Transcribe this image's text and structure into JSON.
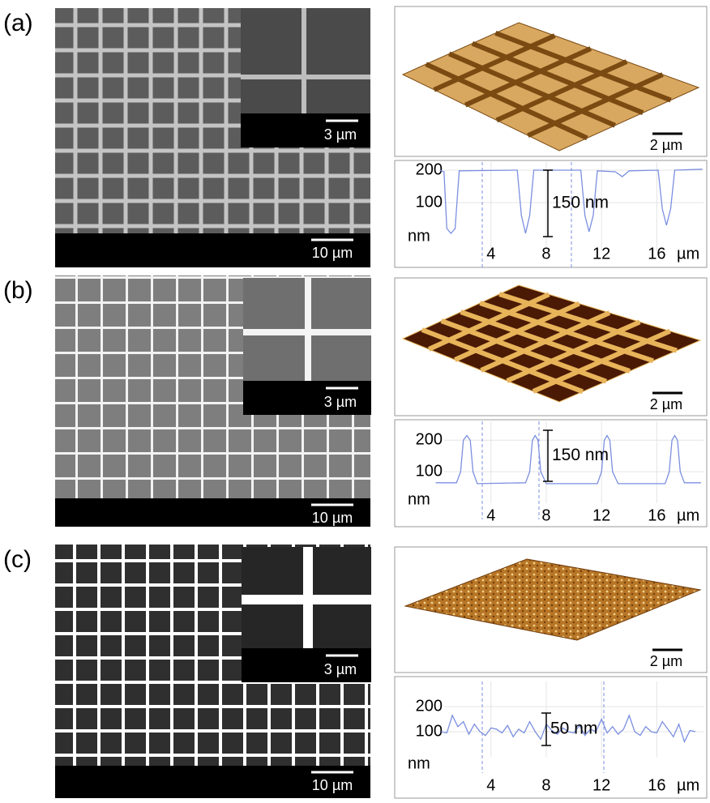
{
  "panels": [
    {
      "label": "(a)",
      "sem_scale": "10 µm",
      "inset_scale": "3 µm",
      "afm_scale": "2 µm",
      "profile": {
        "type": "line",
        "color": "#7b8fe0",
        "x": [
          0.3,
          0.6,
          0.8,
          1.1,
          1.4,
          1.7,
          5.9,
          6.2,
          6.5,
          6.8,
          7.1,
          10.5,
          10.8,
          11.1,
          11.4,
          11.7,
          13,
          13.5,
          14,
          16.1,
          16.4,
          16.7,
          17,
          17.3,
          19.3
        ],
        "values": [
          200,
          195,
          20,
          5,
          20,
          198,
          200,
          60,
          5,
          60,
          200,
          200,
          60,
          10,
          60,
          198,
          195,
          180,
          198,
          200,
          80,
          30,
          80,
          200,
          203
        ],
        "xlim": [
          -2.5,
          19.5
        ],
        "ylim": [
          -50,
          225
        ],
        "xticks": [
          4,
          8,
          12,
          16
        ],
        "yticks": [
          200,
          100
        ],
        "x_label": "µm",
        "y_label": "nm",
        "annotation": "150 nm"
      }
    },
    {
      "label": "(b)",
      "sem_scale": "10 µm",
      "inset_scale": "3 µm",
      "afm_scale": "2 µm",
      "profile": {
        "type": "line",
        "color": "#7b8fe0",
        "x": [
          0,
          1.5,
          1.8,
          2.0,
          2.25,
          2.5,
          2.7,
          3,
          6.5,
          6.8,
          7.0,
          7.2,
          7.4,
          7.6,
          8,
          11.7,
          12,
          12.2,
          12.4,
          12.6,
          12.8,
          13.2,
          16.6,
          16.9,
          17.1,
          17.3,
          17.5,
          17.7,
          18,
          19.2
        ],
        "values": [
          65,
          65,
          100,
          200,
          215,
          200,
          100,
          62,
          65,
          100,
          200,
          215,
          200,
          100,
          62,
          62,
          100,
          200,
          215,
          200,
          100,
          62,
          62,
          100,
          200,
          215,
          200,
          100,
          65,
          65
        ],
        "xlim": [
          -2.5,
          19.5
        ],
        "ylim": [
          0,
          260
        ],
        "xticks": [
          4,
          8,
          12,
          16
        ],
        "yticks": [
          200,
          100
        ],
        "x_label": "µm",
        "y_label": "nm",
        "annotation": "150 nm"
      }
    },
    {
      "label": "(c)",
      "sem_scale": "10 µm",
      "inset_scale": "3 µm",
      "afm_scale": "2 µm",
      "profile": {
        "type": "line",
        "color": "#7b8fe0",
        "x": [
          0.4,
          0.8,
          1.2,
          1.6,
          2,
          2.4,
          2.8,
          3.2,
          3.6,
          4,
          4.4,
          4.8,
          5.2,
          5.6,
          6,
          6.4,
          6.8,
          7.2,
          7.6,
          8,
          8.4,
          8.8,
          9.2,
          9.6,
          10,
          10.4,
          10.8,
          11.2,
          11.6,
          12,
          12.4,
          12.8,
          13.2,
          13.6,
          14,
          14.4,
          14.8,
          15.2,
          15.6,
          16,
          16.4,
          16.8,
          17.2,
          17.6,
          18,
          18.4,
          18.8
        ],
        "values": [
          100,
          95,
          165,
          120,
          140,
          90,
          130,
          100,
          85,
          115,
          110,
          95,
          125,
          80,
          110,
          95,
          140,
          100,
          70,
          130,
          105,
          90,
          115,
          100,
          95,
          125,
          85,
          110,
          100,
          150,
          95,
          120,
          90,
          110,
          165,
          100,
          85,
          120,
          100,
          95,
          140,
          110,
          80,
          130,
          60,
          105,
          100
        ],
        "xlim": [
          -2.5,
          19.5
        ],
        "ylim": [
          0,
          300
        ],
        "xticks": [
          4,
          8,
          12,
          16
        ],
        "yticks": [
          200,
          100
        ],
        "x_label": "µm",
        "y_label": "nm",
        "annotation": "50 nm"
      }
    }
  ]
}
